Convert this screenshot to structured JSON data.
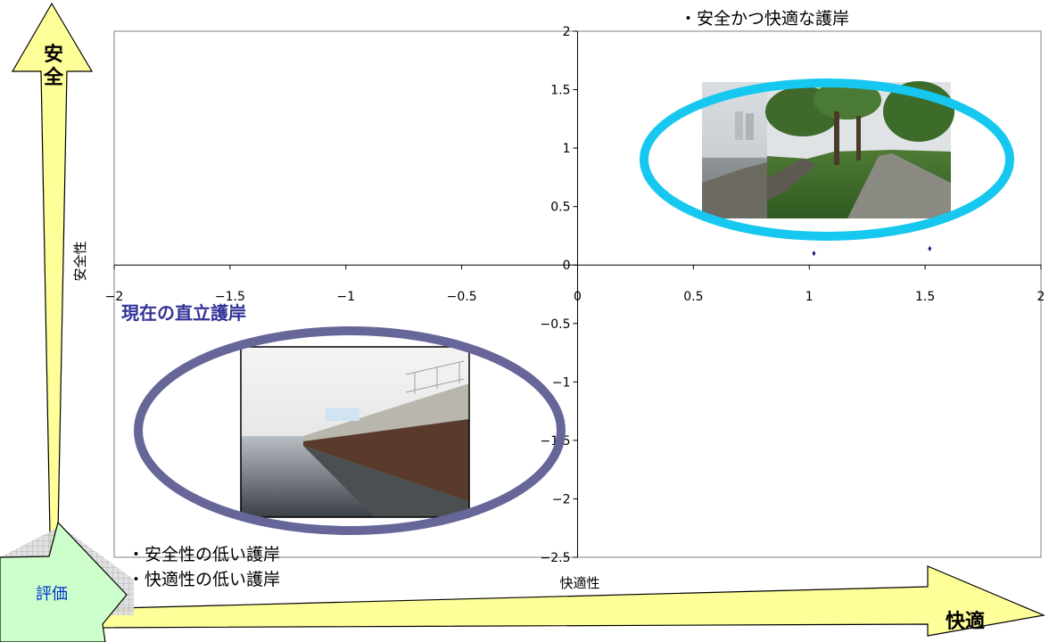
{
  "chart_data": {
    "type": "scatter",
    "xlabel": "快適性",
    "ylabel": "安全性",
    "xlim": [
      -2,
      2
    ],
    "ylim": [
      -2.5,
      2
    ],
    "x_ticks": [
      "-2",
      "-1.5",
      "-1",
      "-0.5",
      "0",
      "0.5",
      "1",
      "1.5",
      "2"
    ],
    "y_ticks": [
      "-2.5",
      "-2",
      "-1.5",
      "-1",
      "-0.5",
      "0",
      "0.5",
      "1",
      "1.5",
      "2"
    ],
    "grid": false,
    "points": [
      {
        "x": 1.02,
        "y": 0.1
      },
      {
        "x": 1.52,
        "y": 0.14
      }
    ]
  },
  "arrows": {
    "safety_label": "安全",
    "comfort_label": "快適",
    "evaluation_label": "評価"
  },
  "annotations": {
    "top_right": "・安全かつ快適な護岸",
    "current": "現在の直立護岸",
    "bottom_line1": "・安全性の低い護岸",
    "bottom_line2": "・快適性の低い護岸"
  },
  "colors": {
    "arrow_fill": "#ffff99",
    "eval_fill": "#ccffcc",
    "top_ellipse": "#16c8f0",
    "bottom_ellipse": "#666699",
    "current_text": "#333399",
    "eval_text": "#0033cc",
    "plot_border": "#808080"
  }
}
